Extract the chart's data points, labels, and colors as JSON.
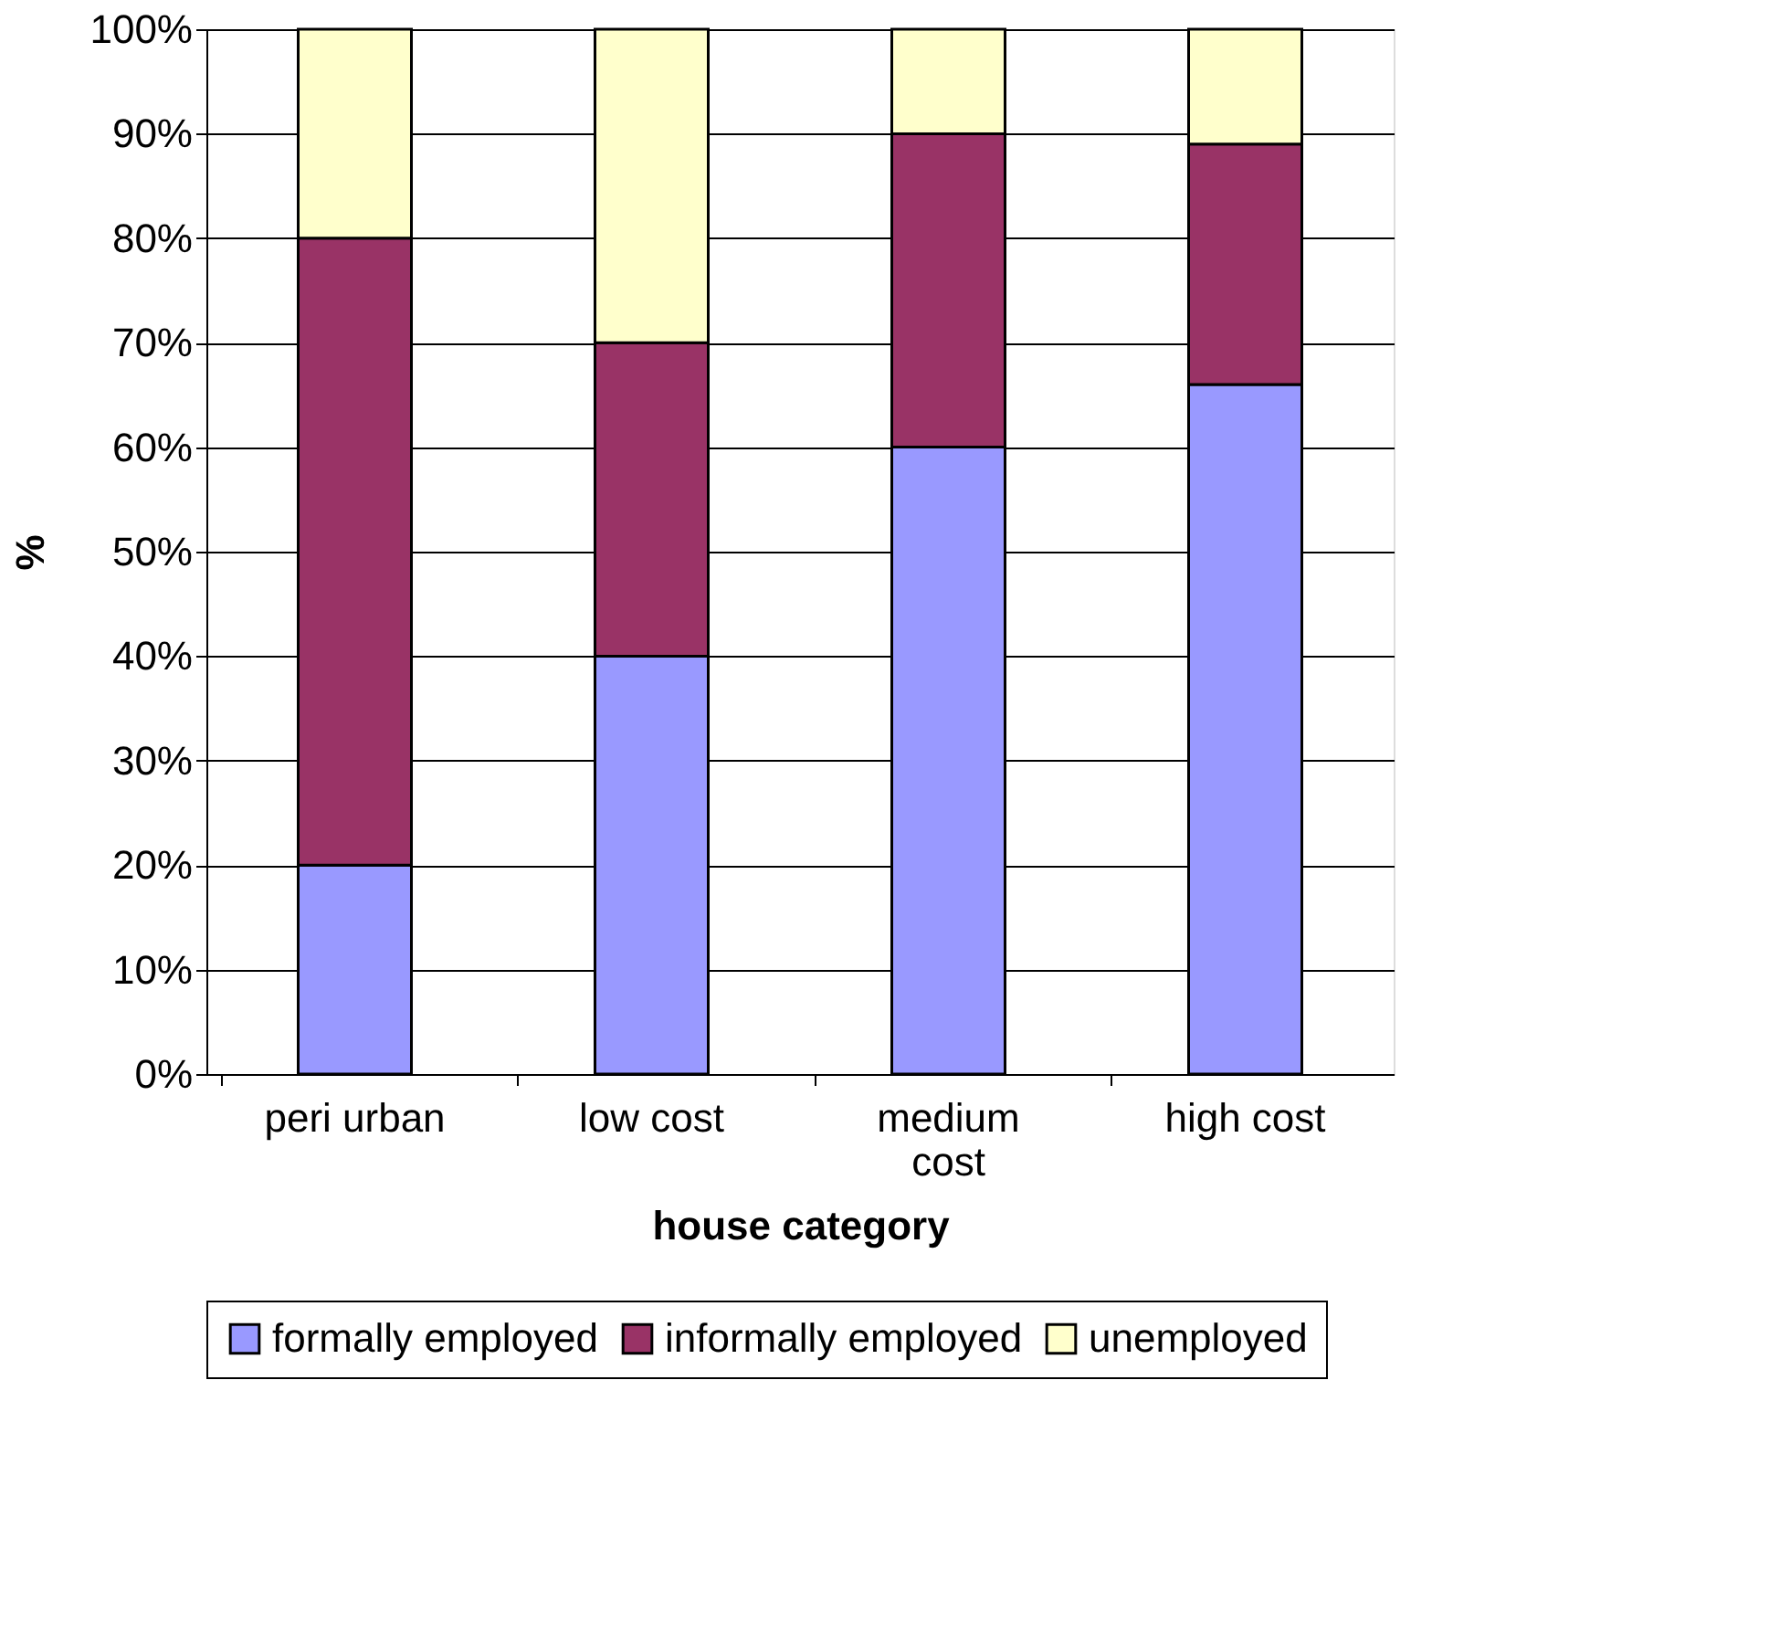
{
  "chart_data": {
    "type": "bar",
    "xlabel": "house category",
    "ylabel": "%",
    "categories": [
      "peri urban",
      "low cost",
      "medium cost",
      "high cost"
    ],
    "stacked": true,
    "series": [
      {
        "name": "formally employed",
        "color": "#9999ff",
        "values": [
          20,
          40,
          60,
          66
        ]
      },
      {
        "name": "informally employed",
        "color": "#993366",
        "values": [
          60,
          30,
          30,
          23
        ]
      },
      {
        "name": "unemployed",
        "color": "#ffffcc",
        "values": [
          20,
          30,
          10,
          11
        ]
      }
    ],
    "ylim": [
      0,
      100
    ],
    "yticks": [
      {
        "value": 0,
        "label": "0%"
      },
      {
        "value": 10,
        "label": "10%"
      },
      {
        "value": 20,
        "label": "20%"
      },
      {
        "value": 30,
        "label": "30%"
      },
      {
        "value": 40,
        "label": "40%"
      },
      {
        "value": 50,
        "label": "50%"
      },
      {
        "value": 60,
        "label": "60%"
      },
      {
        "value": 70,
        "label": "70%"
      },
      {
        "value": 80,
        "label": "80%"
      },
      {
        "value": 90,
        "label": "90%"
      },
      {
        "value": 100,
        "label": "100%"
      }
    ],
    "grid": "y",
    "legend": "bottom"
  }
}
